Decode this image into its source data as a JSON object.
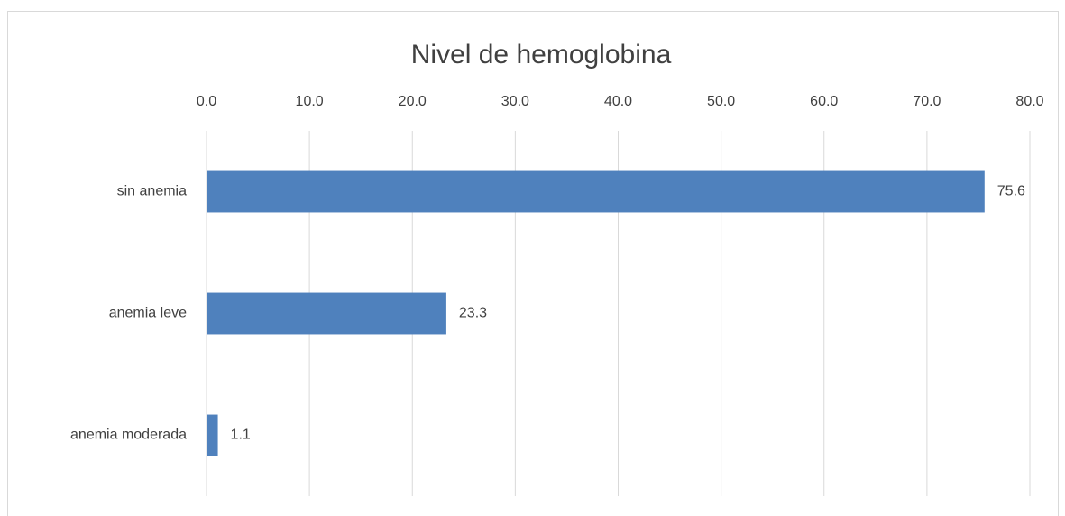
{
  "chart_data": {
    "type": "bar",
    "orientation": "horizontal",
    "title": "Nivel de hemoglobina",
    "categories": [
      "sin anemia",
      "anemia leve",
      "anemia moderada"
    ],
    "values": [
      75.6,
      23.3,
      1.1
    ],
    "color": "#4f81bd",
    "xlim": [
      0,
      80
    ],
    "xticks": [
      {
        "value": 0,
        "label": "0.0"
      },
      {
        "value": 10,
        "label": "10.0"
      },
      {
        "value": 20,
        "label": "20.0"
      },
      {
        "value": 30,
        "label": "30.0"
      },
      {
        "value": 40,
        "label": "40.0"
      },
      {
        "value": 50,
        "label": "50.0"
      },
      {
        "value": 60,
        "label": "60.0"
      },
      {
        "value": 70,
        "label": "70.0"
      },
      {
        "value": 80,
        "label": "80.0"
      }
    ],
    "grid": true
  }
}
